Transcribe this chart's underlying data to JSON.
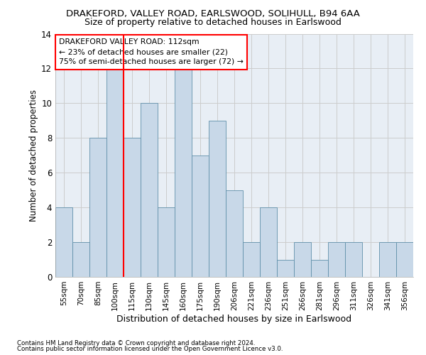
{
  "title": "DRAKEFORD, VALLEY ROAD, EARLSWOOD, SOLIHULL, B94 6AA",
  "subtitle": "Size of property relative to detached houses in Earlswood",
  "xlabel": "Distribution of detached houses by size in Earlswood",
  "ylabel": "Number of detached properties",
  "footnote1": "Contains HM Land Registry data © Crown copyright and database right 2024.",
  "footnote2": "Contains public sector information licensed under the Open Government Licence v3.0.",
  "categories": [
    "55sqm",
    "70sqm",
    "85sqm",
    "100sqm",
    "115sqm",
    "130sqm",
    "145sqm",
    "160sqm",
    "175sqm",
    "190sqm",
    "206sqm",
    "221sqm",
    "236sqm",
    "251sqm",
    "266sqm",
    "281sqm",
    "296sqm",
    "311sqm",
    "326sqm",
    "341sqm",
    "356sqm"
  ],
  "values": [
    4,
    2,
    8,
    12,
    8,
    10,
    4,
    12,
    7,
    9,
    5,
    2,
    4,
    1,
    2,
    1,
    2,
    2,
    0,
    2,
    2
  ],
  "bar_color": "#c8d8e8",
  "bar_edge_color": "#6090aa",
  "red_line_index": 3.5,
  "annotation_text": "DRAKEFORD VALLEY ROAD: 112sqm\n← 23% of detached houses are smaller (22)\n75% of semi-detached houses are larger (72) →",
  "annotation_box_color": "white",
  "annotation_box_edge_color": "red",
  "red_line_color": "red",
  "ylim": [
    0,
    14
  ],
  "yticks": [
    0,
    2,
    4,
    6,
    8,
    10,
    12,
    14
  ],
  "bg_color": "white",
  "grid_color": "#cccccc",
  "ax_bg_color": "#e8eef5"
}
